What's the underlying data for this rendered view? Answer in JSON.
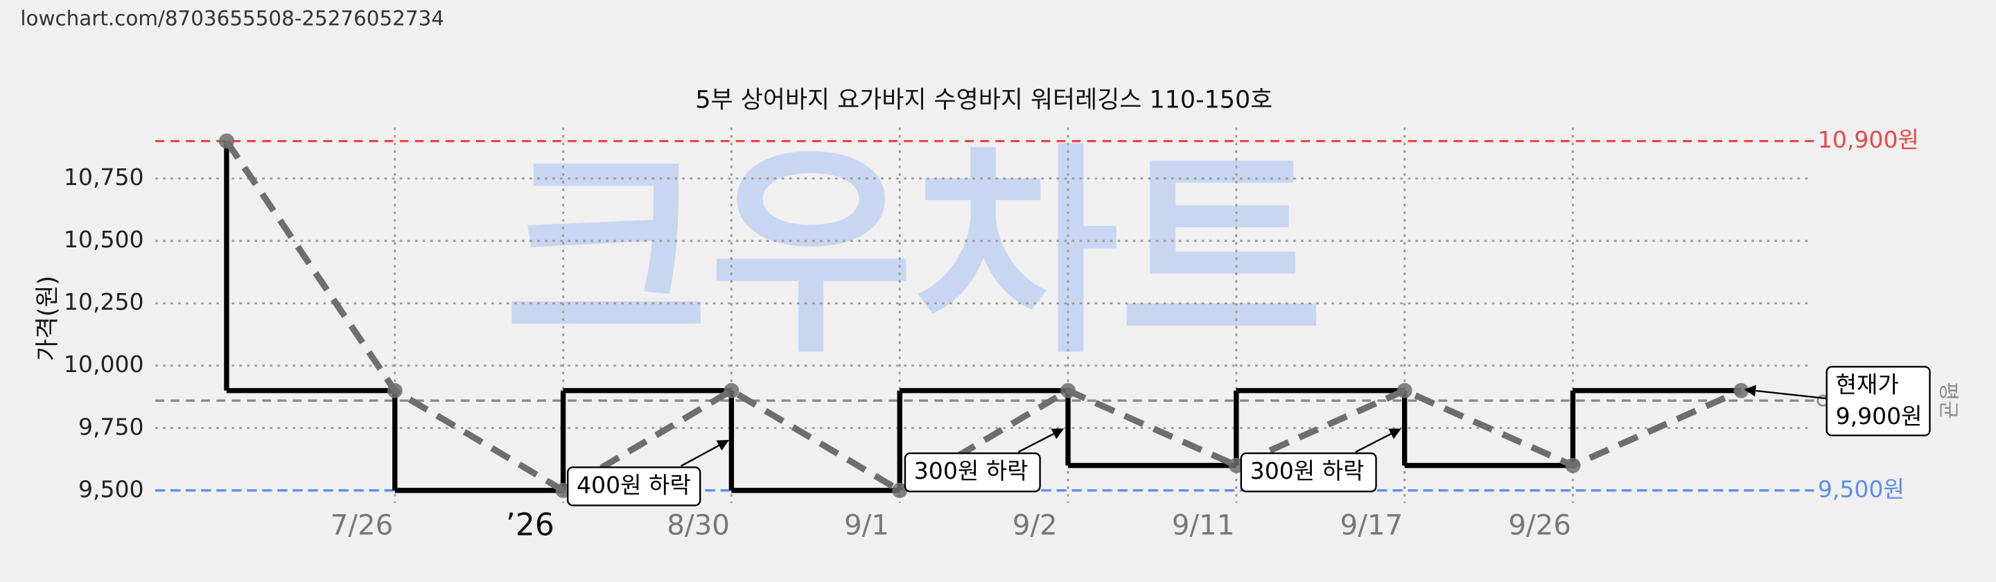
{
  "url": "lowchart.com/8703655508-25276052734",
  "chart_data": {
    "type": "line",
    "title": "5부 상어바지 요가바지 수영바지 워터레깅스 110-150호",
    "watermark": "크우차트",
    "y_label": "가격(원)",
    "categories": [
      null,
      "7/26",
      "’26",
      "8/30",
      "9/1",
      "9/2",
      "9/11",
      "9/17",
      "9/26",
      null
    ],
    "values": [
      10900,
      9900,
      9500,
      9900,
      9500,
      9900,
      9600,
      9900,
      9600,
      9900
    ],
    "step_color": "#000000",
    "line_color": "#6e6e6e",
    "ylim": [
      9450,
      10975
    ],
    "yticks": [
      {
        "value": 9500,
        "label": "9,500"
      },
      {
        "value": 9750,
        "label": "9,750"
      },
      {
        "value": 10000,
        "label": "10,000"
      },
      {
        "value": 10250,
        "label": "10,250"
      },
      {
        "value": 10500,
        "label": "10,500"
      },
      {
        "value": 10750,
        "label": "10,750"
      }
    ],
    "grid": true,
    "reference_lines": [
      {
        "value": 10900,
        "label": "10,900원",
        "color": "#e8474b"
      },
      {
        "value": 9500,
        "label": "9,500원",
        "color": "#5b8def"
      },
      {
        "value": 9860,
        "label": "평균",
        "color": "#8a8a8a"
      }
    ],
    "annotations": [
      [
        "400원 하락"
      ],
      [
        "300원 하락"
      ],
      [
        "300원 하락"
      ],
      [
        "현재가",
        "9,900원"
      ]
    ]
  }
}
